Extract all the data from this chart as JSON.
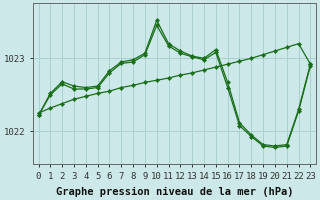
{
  "title": "Graphe pression niveau de la mer (hPa)",
  "background_color": "#cce8e8",
  "grid_color": "#aad0d0",
  "line_color": "#1a6e1a",
  "xlim": [
    -0.5,
    23.5
  ],
  "ylim": [
    1021.55,
    1023.75
  ],
  "yticks": [
    1022,
    1023
  ],
  "xticks": [
    0,
    1,
    2,
    3,
    4,
    5,
    6,
    7,
    8,
    9,
    10,
    11,
    12,
    13,
    14,
    15,
    16,
    17,
    18,
    19,
    20,
    21,
    22,
    23
  ],
  "y_diagonal": [
    1022.25,
    1022.32,
    1022.38,
    1022.44,
    1022.48,
    1022.52,
    1022.55,
    1022.6,
    1022.63,
    1022.67,
    1022.7,
    1022.73,
    1022.77,
    1022.8,
    1022.84,
    1022.88,
    1022.92,
    1022.96,
    1023.0,
    1023.05,
    1023.1,
    1023.15,
    1023.2,
    1022.92
  ],
  "y_jagged1": [
    1022.22,
    1022.52,
    1022.68,
    1022.62,
    1022.6,
    1022.62,
    1022.83,
    1022.95,
    1022.98,
    1023.07,
    1023.52,
    1023.2,
    1023.1,
    1023.03,
    1023.0,
    1023.12,
    1022.67,
    1022.12,
    1021.95,
    1021.82,
    1021.8,
    1021.82,
    1022.3,
    1022.92
  ],
  "y_jagged2": [
    1022.22,
    1022.5,
    1022.65,
    1022.58,
    1022.58,
    1022.6,
    1022.8,
    1022.93,
    1022.95,
    1023.05,
    1023.45,
    1023.17,
    1023.07,
    1023.02,
    1022.98,
    1023.08,
    1022.6,
    1022.08,
    1021.93,
    1021.8,
    1021.78,
    1021.8,
    1022.28,
    1022.9
  ],
  "tick_fontsize": 6.5,
  "title_fontsize": 7.5
}
